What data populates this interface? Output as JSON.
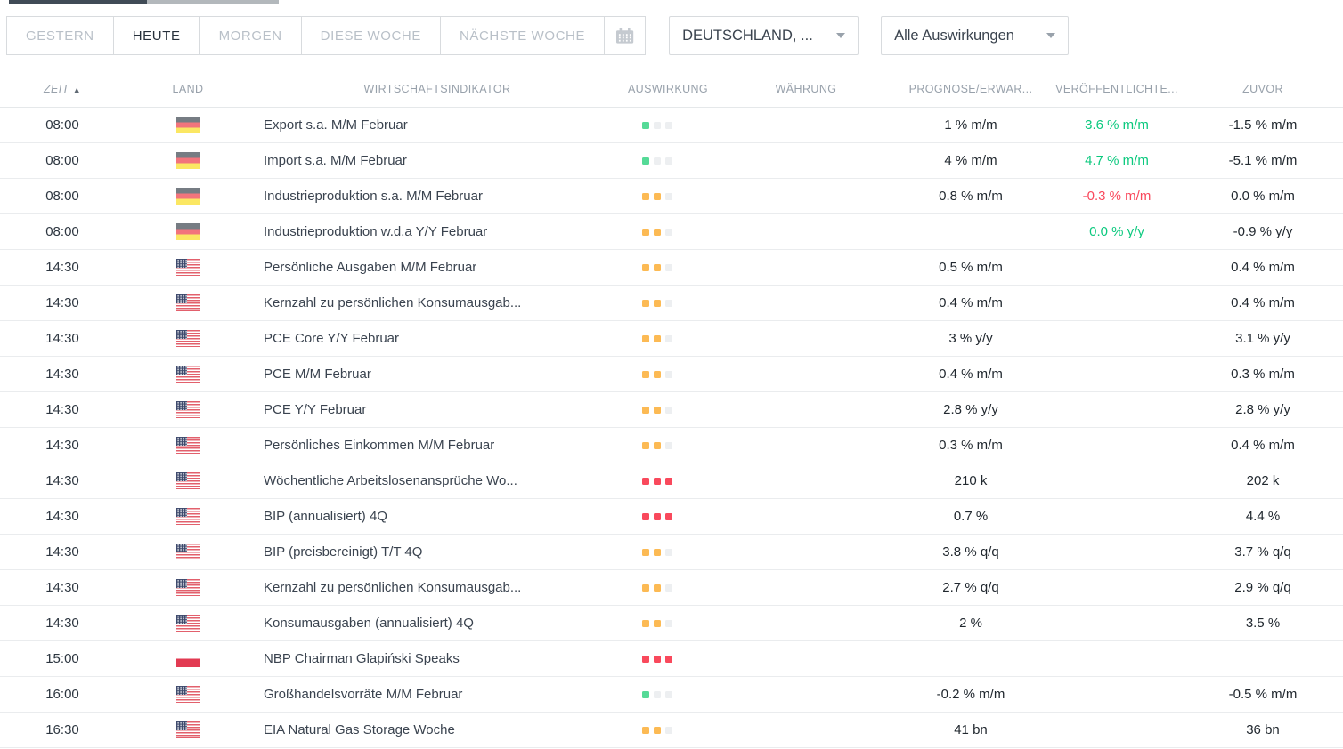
{
  "filters": {
    "date_tabs": [
      {
        "label": "GESTERN",
        "active": false
      },
      {
        "label": "HEUTE",
        "active": true
      },
      {
        "label": "MORGEN",
        "active": false
      },
      {
        "label": "DIESE WOCHE",
        "active": false
      },
      {
        "label": "NÄCHSTE WOCHE",
        "active": false
      }
    ],
    "calendar_button_icon": "calendar-icon",
    "country_dropdown": {
      "value": "DEUTSCHLAND, ...",
      "icon": "chevron-down-icon"
    },
    "impact_dropdown": {
      "value": "Alle Auswirkungen",
      "icon": "chevron-down-icon"
    }
  },
  "table": {
    "headers": {
      "time": "ZEIT",
      "country": "LAND",
      "indicator": "WIRTSCHAFTSINDIKATOR",
      "impact": "AUSWIRKUNG",
      "currency": "WÄHRUNG",
      "forecast": "PROGNOSE/ERWAR...",
      "actual": "VERÖFFENTLICHTE...",
      "previous": "ZUVOR"
    },
    "sort": {
      "column": "ZEIT",
      "direction": "asc",
      "arrow": "▲"
    },
    "rows": [
      {
        "time": "08:00",
        "country": "de",
        "indicator": "Export s.a. M/M Februar",
        "impact": "low",
        "currency": "",
        "forecast": "1 % m/m",
        "actual": "3.6 % m/m",
        "actual_state": "positive",
        "previous": "-1.5 % m/m"
      },
      {
        "time": "08:00",
        "country": "de",
        "indicator": "Import s.a. M/M Februar",
        "impact": "low",
        "currency": "",
        "forecast": "4 % m/m",
        "actual": "4.7 % m/m",
        "actual_state": "positive",
        "previous": "-5.1 % m/m"
      },
      {
        "time": "08:00",
        "country": "de",
        "indicator": "Industrieproduktion s.a. M/M Februar",
        "impact": "medium",
        "currency": "",
        "forecast": "0.8 % m/m",
        "actual": "-0.3 % m/m",
        "actual_state": "negative",
        "previous": "0.0 % m/m"
      },
      {
        "time": "08:00",
        "country": "de",
        "indicator": "Industrieproduktion w.d.a Y/Y Februar",
        "impact": "medium",
        "currency": "",
        "forecast": "",
        "actual": "0.0 % y/y",
        "actual_state": "positive",
        "previous": "-0.9 % y/y"
      },
      {
        "time": "14:30",
        "country": "us",
        "indicator": "Persönliche Ausgaben M/M Februar",
        "impact": "medium",
        "currency": "",
        "forecast": "0.5 % m/m",
        "actual": "",
        "actual_state": "",
        "previous": "0.4 % m/m"
      },
      {
        "time": "14:30",
        "country": "us",
        "indicator": "Kernzahl zu persönlichen Konsumausgab...",
        "impact": "medium",
        "currency": "",
        "forecast": "0.4 % m/m",
        "actual": "",
        "actual_state": "",
        "previous": "0.4 % m/m"
      },
      {
        "time": "14:30",
        "country": "us",
        "indicator": "PCE Core Y/Y Februar",
        "impact": "medium",
        "currency": "",
        "forecast": "3 % y/y",
        "actual": "",
        "actual_state": "",
        "previous": "3.1 % y/y"
      },
      {
        "time": "14:30",
        "country": "us",
        "indicator": "PCE M/M Februar",
        "impact": "medium",
        "currency": "",
        "forecast": "0.4 % m/m",
        "actual": "",
        "actual_state": "",
        "previous": "0.3 % m/m"
      },
      {
        "time": "14:30",
        "country": "us",
        "indicator": "PCE Y/Y Februar",
        "impact": "medium",
        "currency": "",
        "forecast": "2.8 % y/y",
        "actual": "",
        "actual_state": "",
        "previous": "2.8 % y/y"
      },
      {
        "time": "14:30",
        "country": "us",
        "indicator": "Persönliches Einkommen M/M Februar",
        "impact": "medium",
        "currency": "",
        "forecast": "0.3 % m/m",
        "actual": "",
        "actual_state": "",
        "previous": "0.4 % m/m"
      },
      {
        "time": "14:30",
        "country": "us",
        "indicator": "Wöchentliche Arbeitslosenansprüche Wo...",
        "impact": "high",
        "currency": "",
        "forecast": "210 k",
        "actual": "",
        "actual_state": "",
        "previous": "202 k"
      },
      {
        "time": "14:30",
        "country": "us",
        "indicator": "BIP (annualisiert) 4Q",
        "impact": "high",
        "currency": "",
        "forecast": "0.7 %",
        "actual": "",
        "actual_state": "",
        "previous": "4.4 %"
      },
      {
        "time": "14:30",
        "country": "us",
        "indicator": "BIP (preisbereinigt) T/T 4Q",
        "impact": "medium",
        "currency": "",
        "forecast": "3.8 % q/q",
        "actual": "",
        "actual_state": "",
        "previous": "3.7 % q/q"
      },
      {
        "time": "14:30",
        "country": "us",
        "indicator": "Kernzahl zu persönlichen Konsumausgab...",
        "impact": "medium",
        "currency": "",
        "forecast": "2.7 % q/q",
        "actual": "",
        "actual_state": "",
        "previous": "2.9 % q/q"
      },
      {
        "time": "14:30",
        "country": "us",
        "indicator": "Konsumausgaben (annualisiert) 4Q",
        "impact": "medium",
        "currency": "",
        "forecast": "2 %",
        "actual": "",
        "actual_state": "",
        "previous": "3.5 %"
      },
      {
        "time": "15:00",
        "country": "pl",
        "indicator": "NBP Chairman Glapiński Speaks",
        "impact": "high",
        "currency": "",
        "forecast": "",
        "actual": "",
        "actual_state": "",
        "previous": ""
      },
      {
        "time": "16:00",
        "country": "us",
        "indicator": "Großhandelsvorräte M/M Februar",
        "impact": "low",
        "currency": "",
        "forecast": "-0.2 % m/m",
        "actual": "",
        "actual_state": "",
        "previous": "-0.5 % m/m"
      },
      {
        "time": "16:30",
        "country": "us",
        "indicator": "EIA Natural Gas Storage Woche",
        "impact": "medium",
        "currency": "",
        "forecast": "41 bn",
        "actual": "",
        "actual_state": "",
        "previous": "36 bn"
      }
    ]
  },
  "colors": {
    "accent_green": "#0bc97e",
    "accent_red": "#f9485c",
    "impact_low": "#55da97",
    "impact_medium": "#fcba54",
    "impact_high": "#f9495c",
    "impact_off": "#edeff1"
  }
}
